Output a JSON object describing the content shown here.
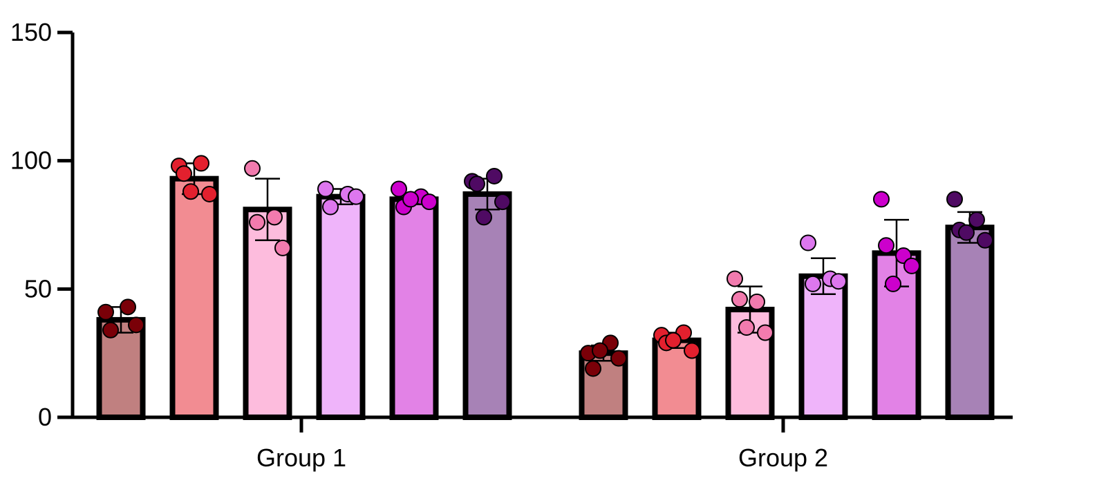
{
  "chart_data": {
    "type": "bar",
    "title": "",
    "xlabel": "",
    "ylabel": "",
    "categories": [
      "Group 1",
      "Group 2"
    ],
    "ylim": [
      0,
      150
    ],
    "yticks": [
      0,
      50,
      100,
      150
    ],
    "ytick_labels": [
      "0",
      "50",
      "100",
      "150"
    ],
    "grid": false,
    "legend": "none",
    "series": [
      {
        "color": "#C08080",
        "dot_color": "#7A0008",
        "values": [
          38,
          25
        ],
        "error": [
          5,
          3
        ],
        "points": [
          [
            41,
            43,
            34,
            36
          ],
          [
            25,
            29,
            19,
            23,
            26
          ]
        ]
      },
      {
        "color": "#F28C92",
        "dot_color": "#E3202E",
        "values": [
          93,
          30
        ],
        "error": [
          6,
          3
        ],
        "points": [
          [
            98,
            99,
            95,
            87,
            88
          ],
          [
            32,
            33,
            29,
            26,
            30
          ]
        ]
      },
      {
        "color": "#FDBCDD",
        "dot_color": "#F27BAE",
        "values": [
          81,
          42
        ],
        "error": [
          12,
          9
        ],
        "points": [
          [
            97,
            78,
            76,
            66
          ],
          [
            54,
            45,
            46,
            33,
            35
          ]
        ]
      },
      {
        "color": "#EFB4FA",
        "dot_color": "#DD77EE",
        "values": [
          86,
          55
        ],
        "error": [
          3,
          7
        ],
        "points": [
          [
            89,
            87,
            82,
            86
          ],
          [
            68,
            54,
            52,
            53
          ]
        ]
      },
      {
        "color": "#E282E6",
        "dot_color": "#CC00CC",
        "values": [
          85,
          64
        ],
        "error": [
          2,
          13
        ],
        "points": [
          [
            89,
            86,
            82,
            84,
            85
          ],
          [
            85,
            63,
            67,
            59,
            52
          ]
        ]
      },
      {
        "color": "#A782B6",
        "dot_color": "#4F0A63",
        "values": [
          87,
          74
        ],
        "error": [
          6,
          6
        ],
        "points": [
          [
            92,
            94,
            91,
            84,
            78
          ],
          [
            85,
            77,
            73,
            69,
            72
          ]
        ]
      }
    ]
  }
}
